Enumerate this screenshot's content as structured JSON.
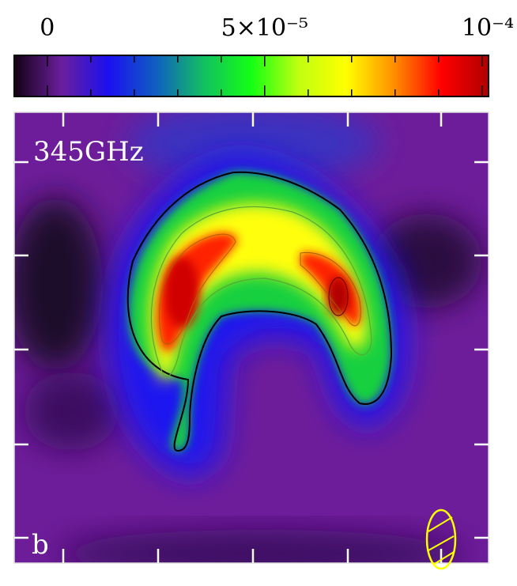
{
  "chart_data": {
    "type": "colormap-image",
    "panel_label": "b",
    "frequency_label": "345GHz",
    "colorbar": {
      "lim": [
        -7.6e-06,
        0.0001015
      ],
      "ticks": [
        0,
        {
          "value": 5e-05,
          "label": "5×10⁻⁵"
        },
        {
          "value": 0.0001,
          "label": "10⁻⁴"
        }
      ],
      "minor_ticks": [
        1e-05,
        2e-05,
        3e-05,
        4e-05,
        6e-05,
        7e-05,
        8e-05,
        9e-05
      ],
      "colormap": [
        "#140014",
        "#6a1f9c",
        "#1a10f0",
        "#1060c0",
        "#12c060",
        "#14ff14",
        "#c0ff10",
        "#ffff00",
        "#ff9000",
        "#ff0000",
        "#b00000"
      ]
    },
    "beam_color": "#ffff00"
  }
}
